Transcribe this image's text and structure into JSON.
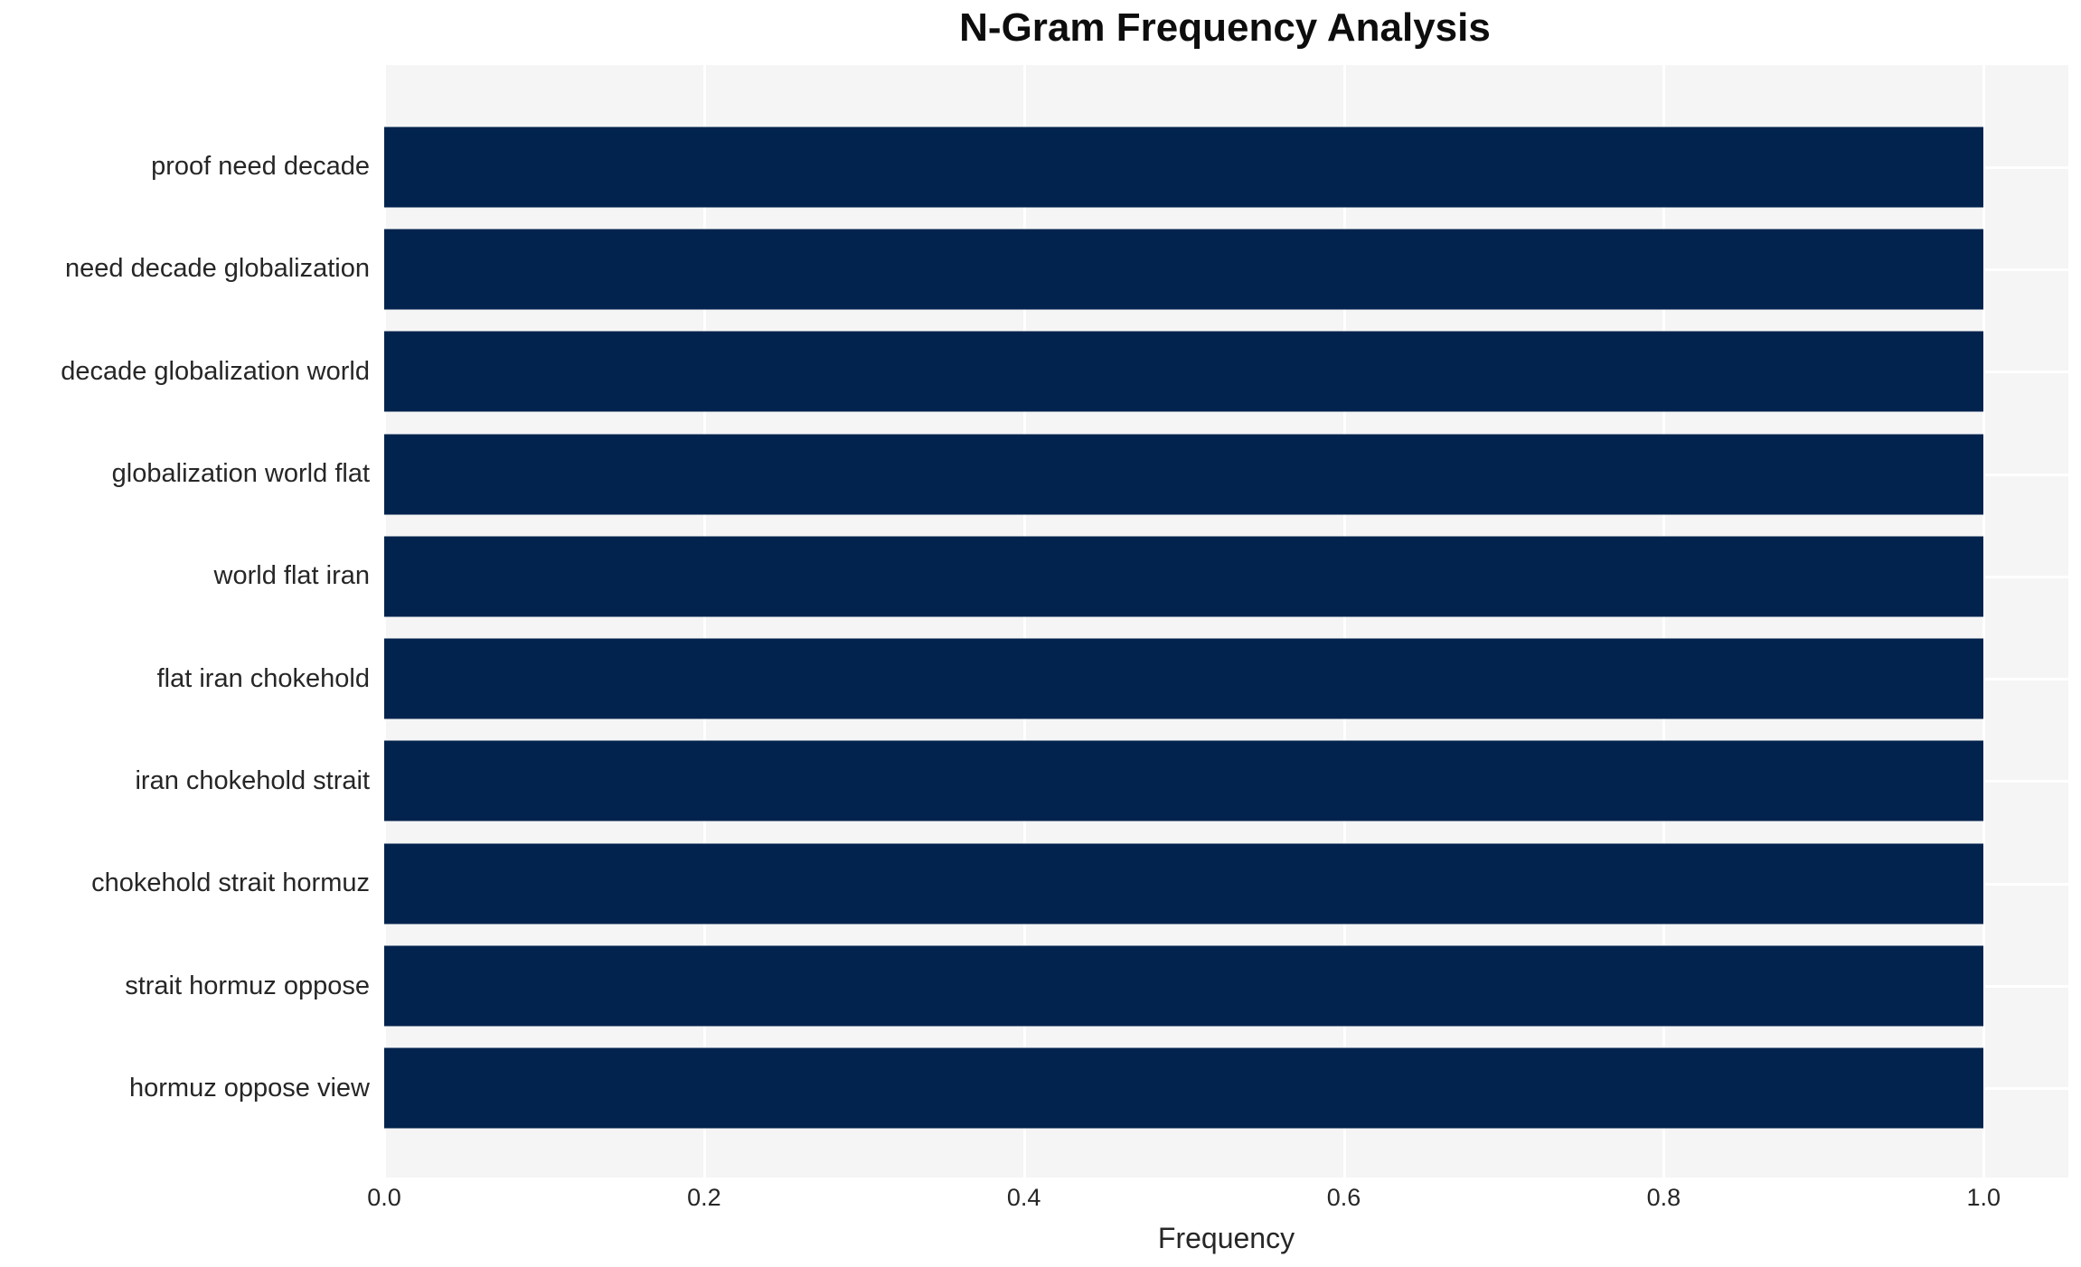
{
  "chart_data": {
    "type": "bar",
    "orientation": "horizontal",
    "title": "N-Gram Frequency Analysis",
    "xlabel": "Frequency",
    "ylabel": "",
    "categories": [
      "proof need decade",
      "need decade globalization",
      "decade globalization world",
      "globalization world flat",
      "world flat iran",
      "flat iran chokehold",
      "iran chokehold strait",
      "chokehold strait hormuz",
      "strait hormuz oppose",
      "hormuz oppose view"
    ],
    "values": [
      1.0,
      1.0,
      1.0,
      1.0,
      1.0,
      1.0,
      1.0,
      1.0,
      1.0,
      1.0
    ],
    "x_tick_labels": [
      "0.0",
      "0.2",
      "0.4",
      "0.6",
      "0.8",
      "1.0"
    ],
    "x_tick_values": [
      0.0,
      0.2,
      0.4,
      0.6,
      0.8,
      1.0
    ],
    "xlim": [
      0,
      1.053
    ],
    "grid": true,
    "legend": false,
    "colors": {
      "bar": "#02234d",
      "plot_background": "#f5f5f6",
      "gridline": "#ffffff",
      "tick_text": "#262626",
      "title_text": "#0d0d0d",
      "figure_background": "#ffffff"
    }
  }
}
